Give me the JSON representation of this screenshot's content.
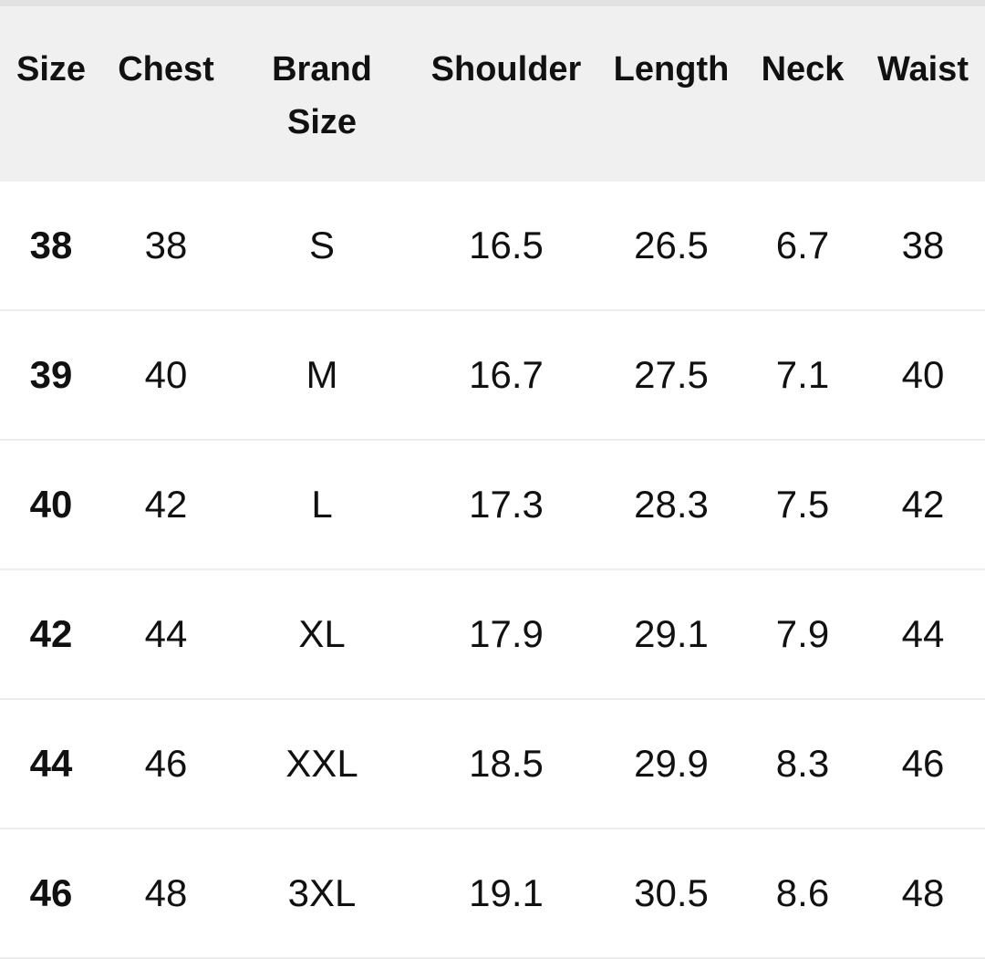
{
  "headers": [
    "Size",
    "Chest",
    "Brand Size",
    "Shoulder",
    "Length",
    "Neck",
    "Waist"
  ],
  "rows": [
    [
      "38",
      "38",
      "S",
      "16.5",
      "26.5",
      "6.7",
      "38"
    ],
    [
      "39",
      "40",
      "M",
      "16.7",
      "27.5",
      "7.1",
      "40"
    ],
    [
      "40",
      "42",
      "L",
      "17.3",
      "28.3",
      "7.5",
      "42"
    ],
    [
      "42",
      "44",
      "XL",
      "17.9",
      "29.1",
      "7.9",
      "44"
    ],
    [
      "44",
      "46",
      "XXL",
      "18.5",
      "29.9",
      "8.3",
      "46"
    ],
    [
      "46",
      "48",
      "3XL",
      "19.1",
      "30.5",
      "8.6",
      "48"
    ]
  ],
  "colors": {
    "header_bg": "#f0f0f0",
    "text": "#111111",
    "divider": "#ececec"
  }
}
